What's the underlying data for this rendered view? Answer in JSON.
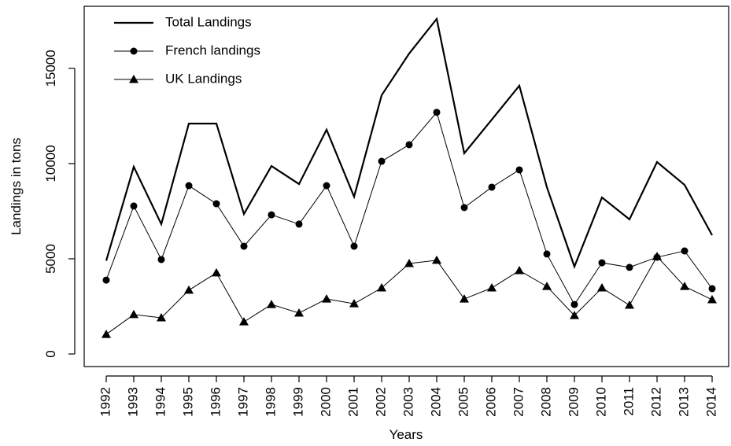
{
  "chart_data": {
    "type": "line",
    "x_label": "Years",
    "y_label": "Landings in tons",
    "x": [
      1992,
      1993,
      1994,
      1995,
      1996,
      1997,
      1998,
      1999,
      2000,
      2001,
      2002,
      2003,
      2004,
      2005,
      2006,
      2007,
      2008,
      2009,
      2010,
      2011,
      2012,
      2013,
      2014
    ],
    "series": [
      {
        "name": "Total Landings",
        "color": "#000000",
        "marker": "none",
        "line_width": 2.2,
        "values": [
          4900,
          9830,
          6820,
          12100,
          12100,
          7350,
          9870,
          8925,
          11780,
          8260,
          13590,
          15780,
          17600,
          10540,
          12310,
          14090,
          8760,
          4590,
          8220,
          7070,
          10080,
          8880,
          6240
        ]
      },
      {
        "name": "French landings",
        "color": "#000000",
        "marker": "circle",
        "line_width": 1,
        "values": [
          3880,
          7770,
          4960,
          8840,
          7890,
          5660,
          7310,
          6820,
          8840,
          5660,
          10120,
          10990,
          12690,
          7690,
          8760,
          9670,
          5250,
          2600,
          4790,
          4550,
          5080,
          5410,
          3430
        ]
      },
      {
        "name": "UK Landings",
        "color": "#000000",
        "marker": "triangle",
        "line_width": 1,
        "values": [
          1030,
          2070,
          1900,
          3350,
          4260,
          1690,
          2600,
          2150,
          2890,
          2640,
          3470,
          4750,
          4920,
          2890,
          3470,
          4380,
          3550,
          2020,
          3470,
          2560,
          5120,
          3550,
          2850
        ]
      }
    ],
    "xlim": [
      1991.2,
      2014.6
    ],
    "xticks": [
      1992,
      1993,
      1994,
      1995,
      1996,
      1997,
      1998,
      1999,
      2000,
      2001,
      2002,
      2003,
      2004,
      2005,
      2006,
      2007,
      2008,
      2009,
      2010,
      2011,
      2012,
      2013,
      2014
    ],
    "ylim": [
      -660,
      18260
    ],
    "yticks": [
      0,
      5000,
      10000,
      15000
    ],
    "legend": "top-left"
  }
}
